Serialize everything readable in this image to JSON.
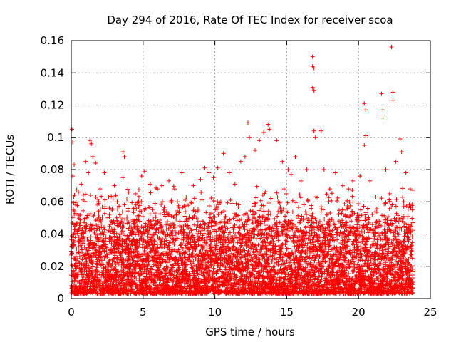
{
  "chart_data": {
    "type": "scatter",
    "title": "Day 294 of 2016, Rate Of TEC Index for receiver scoa",
    "xlabel": "GPS time / hours",
    "ylabel": "ROTI / TECUs",
    "xlim": [
      0,
      25
    ],
    "ylim": [
      0,
      0.16
    ],
    "xticks": [
      0,
      5,
      10,
      15,
      20,
      25
    ],
    "xtick_labels": [
      "0",
      "5",
      "10",
      "15",
      "20",
      "25"
    ],
    "yticks": [
      0,
      0.02,
      0.04,
      0.06,
      0.08,
      0.1,
      0.12,
      0.14,
      0.16
    ],
    "ytick_labels": [
      "0",
      "0.02",
      "0.04",
      "0.06",
      "0.08",
      "0.1",
      "0.12",
      "0.14",
      "0.16"
    ],
    "grid": true,
    "marker": "+",
    "marker_color": "#ff0000",
    "series": [
      {
        "name": "ROTI",
        "points": [
          [
            0.05,
            0.105
          ],
          [
            0.1,
            0.097
          ],
          [
            0.1,
            0.076
          ],
          [
            0.2,
            0.083
          ],
          [
            0.3,
            0.058
          ],
          [
            0.5,
            0.066
          ],
          [
            0.7,
            0.071
          ],
          [
            1.0,
            0.085
          ],
          [
            1.2,
            0.078
          ],
          [
            1.3,
            0.098
          ],
          [
            1.4,
            0.096
          ],
          [
            1.5,
            0.088
          ],
          [
            1.7,
            0.084
          ],
          [
            2.0,
            0.068
          ],
          [
            2.3,
            0.078
          ],
          [
            2.6,
            0.063
          ],
          [
            3.0,
            0.07
          ],
          [
            3.2,
            0.06
          ],
          [
            3.6,
            0.091
          ],
          [
            3.7,
            0.088
          ],
          [
            3.6,
            0.075
          ],
          [
            4.0,
            0.066
          ],
          [
            4.5,
            0.058
          ],
          [
            4.9,
            0.076
          ],
          [
            5.1,
            0.079
          ],
          [
            5.5,
            0.071
          ],
          [
            6.0,
            0.068
          ],
          [
            6.3,
            0.07
          ],
          [
            6.8,
            0.073
          ],
          [
            7.2,
            0.068
          ],
          [
            7.7,
            0.078
          ],
          [
            8.0,
            0.063
          ],
          [
            8.5,
            0.07
          ],
          [
            9.0,
            0.074
          ],
          [
            9.3,
            0.081
          ],
          [
            9.6,
            0.078
          ],
          [
            9.9,
            0.075
          ],
          [
            10.2,
            0.081
          ],
          [
            10.6,
            0.09
          ],
          [
            11.0,
            0.078
          ],
          [
            11.4,
            0.071
          ],
          [
            11.8,
            0.085
          ],
          [
            12.1,
            0.088
          ],
          [
            12.3,
            0.109
          ],
          [
            12.4,
            0.1
          ],
          [
            12.8,
            0.092
          ],
          [
            13.1,
            0.098
          ],
          [
            13.4,
            0.103
          ],
          [
            13.7,
            0.108
          ],
          [
            13.8,
            0.105
          ],
          [
            14.3,
            0.098
          ],
          [
            14.7,
            0.085
          ],
          [
            15.1,
            0.08
          ],
          [
            15.3,
            0.077
          ],
          [
            15.6,
            0.088
          ],
          [
            16.0,
            0.073
          ],
          [
            16.4,
            0.08
          ],
          [
            16.8,
            0.15
          ],
          [
            16.8,
            0.144
          ],
          [
            16.9,
            0.143
          ],
          [
            16.8,
            0.131
          ],
          [
            16.9,
            0.129
          ],
          [
            16.9,
            0.104
          ],
          [
            17.0,
            0.1
          ],
          [
            17.4,
            0.104
          ],
          [
            17.6,
            0.08
          ],
          [
            18.0,
            0.068
          ],
          [
            18.4,
            0.078
          ],
          [
            18.9,
            0.07
          ],
          [
            19.3,
            0.068
          ],
          [
            19.6,
            0.073
          ],
          [
            20.1,
            0.076
          ],
          [
            20.4,
            0.121
          ],
          [
            20.5,
            0.117
          ],
          [
            20.5,
            0.101
          ],
          [
            20.4,
            0.095
          ],
          [
            20.8,
            0.073
          ],
          [
            21.2,
            0.063
          ],
          [
            21.6,
            0.127
          ],
          [
            21.7,
            0.117
          ],
          [
            21.7,
            0.112
          ],
          [
            21.9,
            0.08
          ],
          [
            22.3,
            0.156
          ],
          [
            22.4,
            0.128
          ],
          [
            22.4,
            0.123
          ],
          [
            22.6,
            0.085
          ],
          [
            22.9,
            0.099
          ],
          [
            23.0,
            0.091
          ],
          [
            23.3,
            0.078
          ],
          [
            23.6,
            0.068
          ]
        ],
        "envelope_note": "dense cluster of points between 0.003 and ~0.06 across 0-23.8 h"
      }
    ],
    "dense_band": {
      "x_range": [
        0,
        23.8
      ],
      "y_floor": 0.003,
      "y_typical_max": 0.045,
      "y_peak_max": 0.07
    }
  }
}
